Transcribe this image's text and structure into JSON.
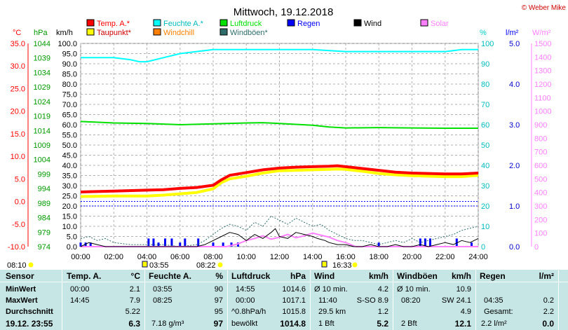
{
  "header": {
    "title": "Mittwoch, 19.12.2018",
    "copyright": "© Weber Mike"
  },
  "colors": {
    "temperature": "#ff0000",
    "dewpoint": "#ffff00",
    "humidity": "#00ffff",
    "windchill": "#ff8000",
    "pressure": "#00e000",
    "gusts": "#2e6b6b",
    "rain": "#0000ff",
    "wind": "#000000",
    "solar": "#ff80ff"
  },
  "legend": [
    {
      "label": "Temp. A.*",
      "color": "#ff0000"
    },
    {
      "label": "Feuchte A.*",
      "color": "#00ffff"
    },
    {
      "label": "Luftdruck",
      "color": "#00e000"
    },
    {
      "label": "Regen",
      "color": "#0000ff"
    },
    {
      "label": "Wind",
      "color": "#000000"
    },
    {
      "label": "Solar",
      "color": "#ff80ff"
    },
    {
      "label": "Taupunkt*",
      "color": "#ffff00"
    },
    {
      "label": "Windchill",
      "color": "#ff8000"
    },
    {
      "label": "Windböen*",
      "color": "#2e6b6b"
    }
  ],
  "chart_data": {
    "type": "line",
    "title": "Mittwoch, 19.12.2018",
    "x_ticks": [
      "00:00",
      "02:00",
      "04:00",
      "06:00",
      "08:00",
      "10:00",
      "12:00",
      "14:00",
      "16:00",
      "18:00",
      "20:00",
      "22:00",
      "24:00"
    ],
    "xlim": [
      0,
      24
    ],
    "grid": true,
    "axes": {
      "temperature": {
        "unit": "°C",
        "range": [
          -10,
          35
        ],
        "ticks": [
          "35.0",
          "30.0",
          "25.0",
          "20.0",
          "15.0",
          "10.0",
          "5.0",
          "0.0",
          "-5.0",
          "-10.0"
        ]
      },
      "pressure": {
        "unit": "hPa",
        "range": [
          974,
          1044
        ],
        "ticks": [
          "1044",
          "1039",
          "1034",
          "1029",
          "1024",
          "1019",
          "1014",
          "1009",
          "1004",
          "999",
          "994",
          "989",
          "984",
          "979",
          "974"
        ]
      },
      "wind": {
        "unit": "km/h",
        "range": [
          0,
          100
        ],
        "ticks": [
          "100.0",
          "95.0",
          "90.0",
          "85.0",
          "80.0",
          "75.0",
          "70.0",
          "65.0",
          "60.0",
          "55.0",
          "50.0",
          "45.0",
          "40.0",
          "35.0",
          "30.0",
          "25.0",
          "20.0",
          "15.0",
          "10.0",
          "5.0",
          "0.0"
        ]
      },
      "humidity": {
        "unit": "%",
        "range": [
          0,
          100
        ],
        "ticks": [
          "100",
          "90",
          "80",
          "70",
          "60",
          "50",
          "40",
          "30",
          "20",
          "10",
          "0"
        ]
      },
      "rain": {
        "unit": "l/m²",
        "range": [
          0,
          5
        ],
        "ticks": [
          "5.0",
          "4.0",
          "3.0",
          "2.0",
          "1.0",
          "0.0"
        ]
      },
      "solar": {
        "unit": "W/m²",
        "range": [
          0,
          1500
        ],
        "ticks": [
          "1500",
          "1400",
          "1300",
          "1200",
          "1100",
          "1000",
          "900",
          "800",
          "700",
          "600",
          "500",
          "400",
          "300",
          "200",
          "100",
          "0"
        ]
      }
    },
    "series": [
      {
        "name": "Temp. A.*",
        "axis": "temperature",
        "x": [
          0,
          2,
          4,
          5,
          6,
          7,
          8,
          8.5,
          9,
          10,
          11,
          12,
          13,
          14,
          15,
          15.5,
          16,
          17,
          18,
          19,
          20,
          21,
          22,
          23,
          24
        ],
        "y": [
          2.1,
          2.3,
          2.5,
          2.6,
          2.9,
          3.1,
          3.6,
          4.8,
          5.8,
          6.4,
          7.0,
          7.4,
          7.6,
          7.7,
          7.8,
          7.9,
          7.7,
          7.3,
          6.9,
          6.5,
          6.3,
          6.2,
          6.1,
          6.1,
          6.3
        ]
      },
      {
        "name": "Taupunkt*",
        "axis": "temperature",
        "x": [
          0,
          2,
          4,
          5,
          6,
          7,
          8,
          8.5,
          9,
          10,
          11,
          12,
          13,
          14,
          15,
          15.5,
          16,
          17,
          18,
          19,
          20,
          21,
          22,
          23,
          24
        ],
        "y": [
          1.1,
          1.2,
          1.2,
          1.4,
          1.7,
          2.0,
          2.8,
          4.2,
          5.0,
          5.6,
          6.3,
          6.8,
          6.9,
          7.0,
          7.1,
          7.2,
          7.1,
          6.7,
          6.2,
          5.9,
          5.7,
          5.6,
          5.5,
          5.5,
          5.8
        ]
      },
      {
        "name": "Feuchte A.*",
        "axis": "humidity",
        "x": [
          0,
          1,
          2,
          3,
          3.55,
          4,
          5,
          6,
          7,
          8,
          8.4,
          9,
          10,
          12,
          14,
          16,
          17,
          18,
          20,
          22,
          23,
          24
        ],
        "y": [
          93,
          93,
          93,
          92,
          91,
          91,
          93,
          95,
          96,
          97,
          97,
          97,
          97,
          97,
          97,
          96,
          96,
          96,
          96,
          96,
          97,
          97
        ]
      },
      {
        "name": "Luftdruck",
        "axis": "pressure",
        "x": [
          0,
          2,
          4,
          6,
          8,
          10,
          11,
          12,
          14,
          15,
          16,
          18,
          20,
          22,
          24
        ],
        "y": [
          1017.1,
          1016.6,
          1016.4,
          1016.0,
          1016.3,
          1016.6,
          1016.7,
          1016.4,
          1015.8,
          1015.2,
          1014.9,
          1015.0,
          1014.9,
          1014.8,
          1014.8
        ]
      },
      {
        "name": "Wind",
        "axis": "wind",
        "x": [
          0,
          0.5,
          1,
          1.5,
          2,
          3,
          4,
          5,
          6,
          7,
          7.5,
          8,
          8.5,
          9,
          9.5,
          10,
          10.5,
          11,
          11.5,
          11.75,
          12,
          12.5,
          13,
          13.5,
          14,
          14.3,
          14.75,
          15,
          15.5,
          16,
          16.5,
          17,
          17.5,
          18,
          18.5,
          19,
          19.5,
          20,
          20.5,
          21,
          21.5,
          22,
          22.5,
          23,
          23.5,
          24
        ],
        "y": [
          0,
          2,
          1,
          0,
          0,
          0,
          0,
          0,
          0,
          0,
          1,
          3,
          5,
          7,
          6,
          3,
          6,
          4,
          7,
          8.9,
          5,
          4,
          7,
          6,
          5,
          4,
          3,
          2,
          1,
          1,
          0,
          0,
          1,
          0,
          0,
          1,
          0,
          0,
          1,
          0,
          1,
          2,
          1,
          3,
          2,
          4
        ]
      },
      {
        "name": "Windböen*",
        "axis": "wind",
        "x": [
          0,
          0.5,
          1,
          1.5,
          2,
          3,
          4,
          5,
          6,
          7,
          7.5,
          8,
          8.5,
          9,
          9.5,
          10,
          10.5,
          11,
          11.5,
          12,
          12.5,
          13,
          13.5,
          14,
          14.5,
          15,
          15.5,
          16,
          16.5,
          17,
          17.5,
          18,
          18.5,
          19,
          19.5,
          20,
          20.5,
          21,
          21.5,
          22,
          22.5,
          23,
          23.5,
          24
        ],
        "y": [
          4,
          5,
          3,
          4,
          2,
          1,
          1,
          1,
          0,
          1,
          3,
          6,
          9,
          11,
          10,
          8,
          12,
          10,
          15,
          13,
          11,
          14,
          12,
          10,
          11,
          8,
          6,
          4,
          3,
          3,
          2,
          1,
          2,
          3,
          2,
          4,
          2,
          3,
          4,
          5,
          6,
          8,
          9,
          10
        ]
      },
      {
        "name": "Solar",
        "axis": "solar",
        "x": [
          0,
          8.8,
          9.5,
          10,
          10.5,
          11,
          11.5,
          12,
          12.5,
          13,
          13.5,
          14,
          14.5,
          15,
          15.5,
          16,
          16.6,
          24
        ],
        "y": [
          0,
          0,
          20,
          45,
          60,
          80,
          55,
          70,
          90,
          65,
          80,
          100,
          85,
          70,
          45,
          30,
          0,
          0
        ]
      }
    ],
    "rain_bars": {
      "axis": "rain",
      "x": [
        0,
        0.3,
        0.6,
        4.1,
        4.4,
        4.7,
        5.1,
        5.5,
        6.0,
        6.3,
        7.1,
        8.0,
        8.6,
        9.1,
        9.5,
        18.0,
        20.5,
        20.8,
        21.1,
        22.7,
        23.6
      ],
      "y": [
        0.1,
        0.1,
        0.1,
        0.2,
        0.2,
        0.1,
        0.2,
        0.2,
        0.1,
        0.2,
        0.2,
        0.1,
        0.1,
        0.1,
        0.1,
        0.1,
        0.2,
        0.2,
        0.2,
        0.2,
        0.1
      ]
    },
    "reference_lines": [
      {
        "axis": "temperature",
        "value": 0,
        "color": "#0000ff"
      },
      {
        "axis": "humidity",
        "value": 20,
        "color": "#0000ff"
      }
    ]
  },
  "sun_markers": {
    "sunrise": "08:10",
    "sunset": "16:33",
    "moonrise": "03:55",
    "moonset": "08:22"
  },
  "table": {
    "columns": {
      "sensor": "Sensor",
      "temp": "Temp. A.",
      "temp_unit": "°C",
      "feuchte": "Feuchte A.",
      "feuchte_unit": "%",
      "luftdruck": "Luftdruck",
      "luftdruck_unit": "hPa",
      "wind": "Wind",
      "wind_unit": "km/h",
      "windboeen": "Windböen",
      "windboeen_unit": "km/h",
      "regen": "Regen",
      "regen_unit": "l/m²"
    },
    "rows": {
      "min": {
        "label": "MinWert",
        "temp_time": "00:00",
        "temp": "2.1",
        "feuchte_time": "03:55",
        "feuchte": "90",
        "druck_time": "14:55",
        "druck": "1014.6",
        "wind_label": "Ø 10 min.",
        "wind": "4.2",
        "boeen_label": "Ø 10 min.",
        "boeen": "10.9",
        "regen_time": "",
        "regen": ""
      },
      "max": {
        "label": "MaxWert",
        "temp_time": "14:45",
        "temp": "7.9",
        "feuchte_time": "08:25",
        "feuchte": "97",
        "druck_time": "00:00",
        "druck": "1017.1",
        "wind_time": "11:40",
        "wind_dir": "S-SO 8.9",
        "boeen_time": "08:20",
        "boeen_dir": "SW 24.1",
        "regen_time": "04:35",
        "regen": "0.2"
      },
      "avg": {
        "label": "Durchschnitt",
        "temp": "5.22",
        "feuchte": "95",
        "druck_label": "^0.8hPa/h",
        "druck": "1015.8",
        "wind_km": "29.5 km",
        "wind": "1.2",
        "boeen": "4.9",
        "regen_label": "Gesamt:",
        "regen": "2.2"
      },
      "current": {
        "label": "19.12. 23:55",
        "temp": "6.3",
        "feuchte_label": "7.18 g/m³",
        "feuchte": "97",
        "druck_label": "bewölkt",
        "druck": "1014.8",
        "wind_label": "1 Bft",
        "wind": "5.2",
        "boeen_label": "2 Bft",
        "boeen": "12.1",
        "regen_label": "2.2 l/m²",
        "regen": "0.0"
      }
    }
  }
}
